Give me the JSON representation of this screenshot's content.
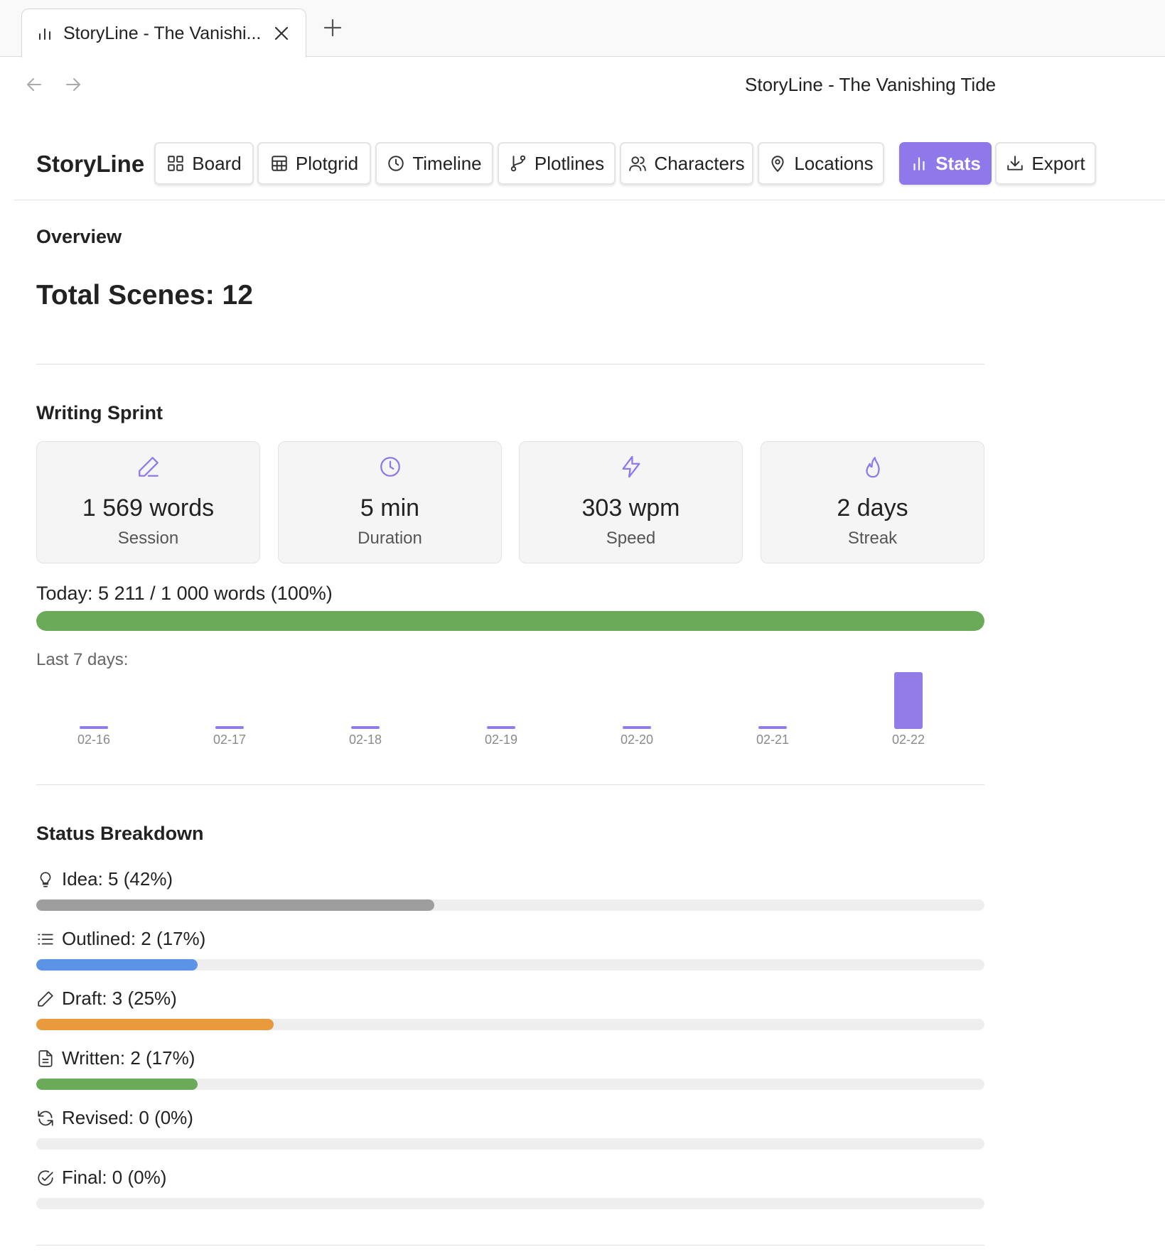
{
  "browser": {
    "tab_title": "StoryLine - The Vanishi...",
    "page_title": "StoryLine - The Vanishing Tide"
  },
  "app": {
    "brand": "StoryLine",
    "nav": [
      {
        "label": "Board",
        "icon": "grid-icon",
        "active": false
      },
      {
        "label": "Plotgrid",
        "icon": "table-icon",
        "active": false
      },
      {
        "label": "Timeline",
        "icon": "clock-icon",
        "active": false
      },
      {
        "label": "Plotlines",
        "icon": "git-branch-icon",
        "active": false
      },
      {
        "label": "Characters",
        "icon": "users-icon",
        "active": false
      },
      {
        "label": "Locations",
        "icon": "map-pin-icon",
        "active": false
      },
      {
        "label": "Stats",
        "icon": "bar-chart-icon",
        "active": true
      },
      {
        "label": "Export",
        "icon": "download-icon",
        "active": false
      }
    ]
  },
  "overview": {
    "heading": "Overview",
    "total_scenes": "Total Scenes: 12"
  },
  "sprint": {
    "heading": "Writing Sprint",
    "cards": [
      {
        "value": "1 569 words",
        "label": "Session",
        "icon": "pencil-icon"
      },
      {
        "value": "5 min",
        "label": "Duration",
        "icon": "clock-icon"
      },
      {
        "value": "303 wpm",
        "label": "Speed",
        "icon": "lightning-icon"
      },
      {
        "value": "2 days",
        "label": "Streak",
        "icon": "flame-icon"
      }
    ],
    "today_text": "Today: 5 211 / 1 000 words (100%)",
    "today_progress": 1.0,
    "last7_label": "Last 7 days:"
  },
  "status": {
    "heading": "Status Breakdown",
    "items": [
      {
        "label": "Idea: 5 (42%)",
        "fraction": 0.42,
        "color": "#9e9e9e",
        "icon": "lightbulb-icon"
      },
      {
        "label": "Outlined: 2 (17%)",
        "fraction": 0.17,
        "color": "#5b93e6",
        "icon": "list-icon"
      },
      {
        "label": "Draft: 3 (25%)",
        "fraction": 0.25,
        "color": "#e89a3c",
        "icon": "pencil-icon"
      },
      {
        "label": "Written: 2 (17%)",
        "fraction": 0.17,
        "color": "#6aaa58",
        "icon": "document-icon"
      },
      {
        "label": "Revised: 0 (0%)",
        "fraction": 0.0,
        "color": "#8f78ea",
        "icon": "refresh-icon"
      },
      {
        "label": "Final: 0 (0%)",
        "fraction": 0.0,
        "color": "#6aaa58",
        "icon": "check-circle-icon"
      }
    ]
  },
  "colors": {
    "accent": "#8f78ea",
    "bar": "#927ce8",
    "progress_green": "#6aaa58"
  },
  "chart_data": {
    "type": "bar",
    "categories": [
      "02-16",
      "02-17",
      "02-18",
      "02-19",
      "02-20",
      "02-21",
      "02-22"
    ],
    "values": [
      0,
      0,
      0,
      0,
      0,
      0,
      5211
    ],
    "title": "",
    "xlabel": "",
    "ylabel": ""
  }
}
